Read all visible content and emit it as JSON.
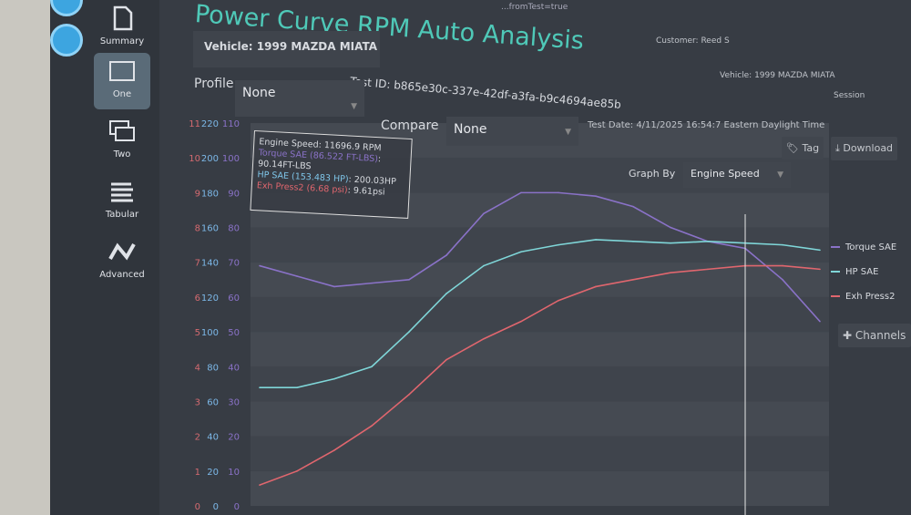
{
  "sidebar": {
    "items": [
      {
        "label": "Summary",
        "icon": "document-icon"
      },
      {
        "label": "One",
        "icon": "single-window-icon",
        "active": true
      },
      {
        "label": "Two",
        "icon": "two-windows-icon"
      },
      {
        "label": "Tabular",
        "icon": "list-icon"
      },
      {
        "label": "Advanced",
        "icon": "zigzag-icon"
      }
    ]
  },
  "url_fragment": "...fromTest=true",
  "header": {
    "title": "Power Curve RPM Auto Analysis",
    "vehicle": "Vehicle: 1999 MAZDA MIATA",
    "test_id": "Test ID: b865e30c-337e-42df-a3fa-b9c4694ae85b",
    "test_date": "Test Date: 4/11/2025 16:54:7 Eastern Daylight Time",
    "customer": "Customer: Reed S",
    "vehicle_small": "Vehicle: 1999 MAZDA MIATA",
    "session": "Session"
  },
  "controls": {
    "profile_label": "Profile",
    "profile_value": "None",
    "compare_label": "Compare",
    "compare_value": "None",
    "graph_by_label": "Graph By",
    "graph_by_value": "Engine Speed",
    "tag": "Tag",
    "download": "Download",
    "channels": "Channels"
  },
  "tooltip": {
    "engine_speed": "Engine Speed: 11696.9 RPM",
    "torque_name": "Torque SAE (86.522 FT-LBS)",
    "torque_val": ": 90.14FT-LBS",
    "hp_name": "HP SAE (153.483 HP)",
    "hp_val": ": 200.03HP",
    "exh_name": "Exh Press2 (6.68 psi)",
    "exh_val": ": 9.61psi"
  },
  "colors": {
    "torque": "#8a72c8",
    "hp": "#7fd6d8",
    "exh": "#e0666e",
    "accent": "#4fc9b8"
  },
  "chart_data": {
    "type": "line",
    "xlabel": "Engine Speed",
    "axes": {
      "exh": {
        "ticks": [
          "0",
          "1",
          "2",
          "3",
          "4",
          "5",
          "6",
          "7",
          "8",
          "9",
          "10",
          "11"
        ],
        "ylim": [
          0,
          11
        ]
      },
      "hp": {
        "ticks": [
          "0",
          "20",
          "40",
          "60",
          "80",
          "100",
          "120",
          "140",
          "160",
          "180",
          "200",
          "220"
        ],
        "ylim": [
          0,
          220
        ]
      },
      "torque": {
        "ticks": [
          "0",
          "10",
          "20",
          "30",
          "40",
          "50",
          "60",
          "70",
          "80",
          "90",
          "100",
          "110"
        ],
        "ylim": [
          0,
          110
        ]
      }
    },
    "x": [
      0,
      1,
      2,
      3,
      4,
      5,
      6,
      7,
      8,
      9,
      10,
      11,
      12,
      13,
      14,
      15
    ],
    "series": [
      {
        "name": "Torque SAE",
        "axis": "torque",
        "color": "#8a72c8",
        "values": [
          69,
          66,
          63,
          64,
          65,
          72,
          84,
          90,
          90,
          89,
          86,
          80,
          76,
          74,
          65,
          53
        ]
      },
      {
        "name": "HP SAE",
        "axis": "hp",
        "color": "#7fd6d8",
        "values": [
          68,
          68,
          73,
          80,
          100,
          122,
          138,
          146,
          150,
          153,
          152,
          151,
          152,
          151,
          150,
          147
        ]
      },
      {
        "name": "Exh Press2",
        "axis": "exh",
        "color": "#e0666e",
        "values": [
          0.6,
          1.0,
          1.6,
          2.3,
          3.2,
          4.2,
          4.8,
          5.3,
          5.9,
          6.3,
          6.5,
          6.7,
          6.8,
          6.9,
          6.9,
          6.8
        ]
      }
    ],
    "cursor_x": 13,
    "legend": "right",
    "grid": true
  }
}
